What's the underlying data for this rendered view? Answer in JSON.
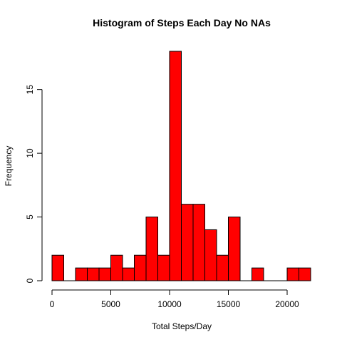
{
  "chart_data": {
    "type": "bar",
    "title": "Histogram of Steps Each Day No NAs",
    "xlabel": "Total Steps/Day",
    "ylabel": "Frequency",
    "bin_width": 1000,
    "bins_start": 0,
    "values": [
      2,
      0,
      1,
      1,
      1,
      2,
      1,
      2,
      5,
      2,
      18,
      6,
      6,
      4,
      2,
      5,
      0,
      1,
      0,
      0,
      1,
      1
    ],
    "xlim": [
      0,
      22000
    ],
    "ylim": [
      0,
      18
    ],
    "x_ticks": [
      0,
      5000,
      10000,
      15000,
      20000
    ],
    "x_tick_labels": [
      "0",
      "5000",
      "10000",
      "15000",
      "20000"
    ],
    "y_ticks": [
      0,
      5,
      10,
      15
    ],
    "y_tick_labels": [
      "0",
      "5",
      "10",
      "15"
    ],
    "bar_color": "#FF0000",
    "border_color": "#000000",
    "grid": false,
    "legend": "none"
  }
}
